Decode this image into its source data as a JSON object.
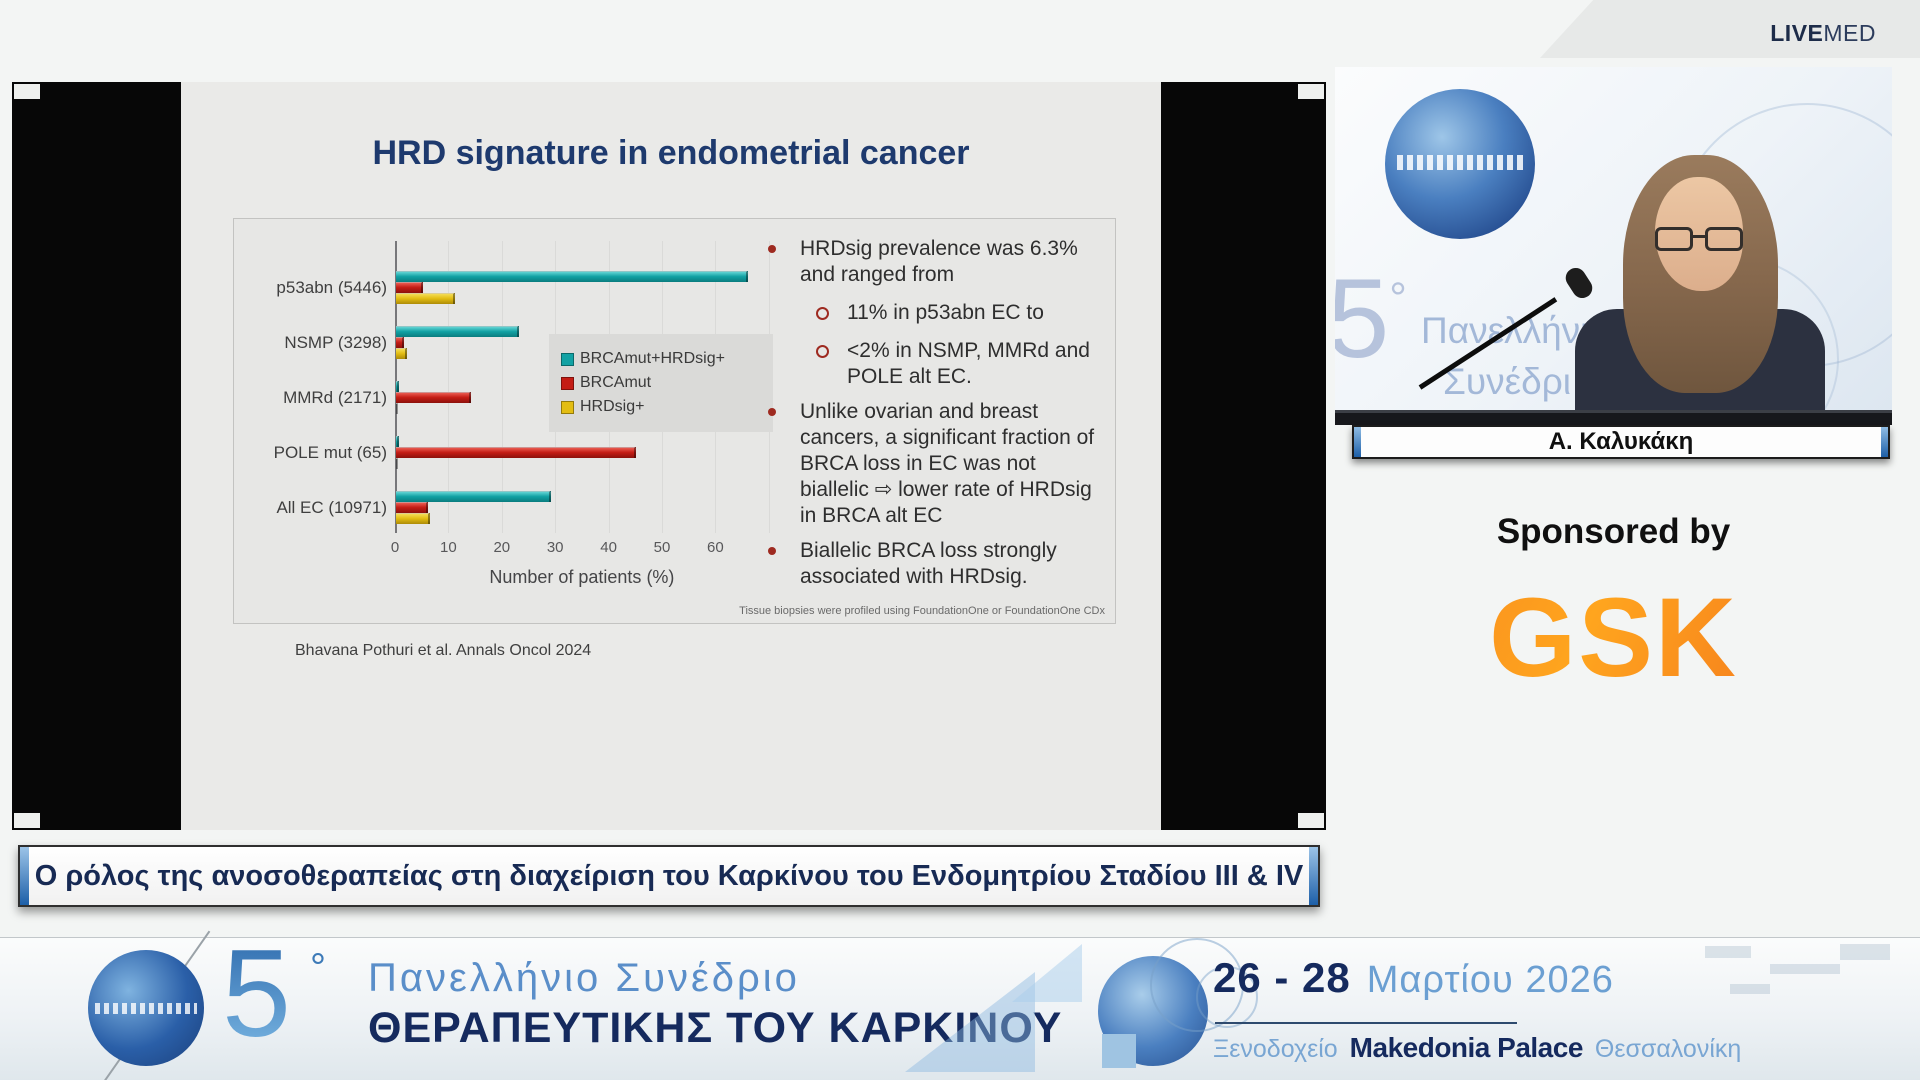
{
  "brand": {
    "live": "LIVE",
    "med": "MED"
  },
  "slide": {
    "title": "HRD signature in endometrial cancer",
    "bullets": [
      {
        "level": 1,
        "text": "HRDsig prevalence was 6.3% and ranged from"
      },
      {
        "level": 2,
        "text": "11% in p53abn EC to"
      },
      {
        "level": 2,
        "text": "<2% in NSMP, MMRd and POLE alt EC."
      },
      {
        "level": 1,
        "text": "Unlike ovarian and breast cancers, a significant fraction of BRCA loss in EC was not biallelic ⇨ lower rate of HRDsig in BRCA alt EC"
      },
      {
        "level": 1,
        "text": "Biallelic BRCA loss strongly associated with HRDsig."
      }
    ],
    "footnote": "Tissue biopsies were profiled using FoundationOne or FoundationOne CDx",
    "citation": "Bhavana Pothuri et al. Annals Oncol 2024"
  },
  "chart_data": {
    "type": "bar",
    "orientation": "horizontal",
    "categories": [
      "p53abn (5446)",
      "NSMP (3298)",
      "MMRd (2171)",
      "POLE mut (65)",
      "All EC (10971)"
    ],
    "series": [
      {
        "name": "BRCAmut+HRDsig+",
        "color": "#12a2a4",
        "light": "#62d3d3",
        "dark": "#0a7c7e",
        "values": [
          66,
          23,
          0.5,
          0.5,
          29
        ]
      },
      {
        "name": "BRCAmut",
        "color": "#c41d15",
        "light": "#ea5a50",
        "dark": "#8c110c",
        "values": [
          5,
          1.5,
          14,
          45,
          6
        ]
      },
      {
        "name": "HRDsig+",
        "color": "#e3bd12",
        "light": "#f3dc55",
        "dark": "#ad8c07",
        "values": [
          11,
          2,
          0.4,
          0.4,
          6.3
        ]
      }
    ],
    "xlabel": "Number of patients (%)",
    "xticks": [
      0,
      10,
      20,
      30,
      40,
      50,
      60
    ],
    "xlim": [
      0,
      70
    ],
    "grid": true,
    "legend_position": "center-right"
  },
  "video": {
    "speaker_name": "Α. Καλυκάκη",
    "backdrop": {
      "number": "5",
      "degree": "°",
      "line1": "Πανελλήνιο",
      "line2": "Συνέδρι"
    }
  },
  "sponsor": {
    "label": "Sponsored by",
    "name": "GSK",
    "orange": "#f58220"
  },
  "lecture_title": "Ο ρόλος της ανοσοθεραπείας στη διαχείριση του Καρκίνου του Ενδομητρίου Σταδίου III & IV",
  "banner": {
    "number": "5",
    "degree": "°",
    "line1": "Πανελλήνιο Συνέδριο",
    "line2": "ΘΕΡΑΠΕΥΤΙΚΗΣ ΤΟΥ ΚΑΡΚΙΝΟΥ",
    "dates": "26 - 28",
    "month_year": "Μαρτίου 2026",
    "venue_prefix": "Ξενοδοχείο",
    "venue": "Makedonia Palace",
    "city": "Θεσσαλονίκη"
  },
  "colors": {
    "accent_navy": "#152a5e",
    "accent_blue": "#5a8ec9",
    "bullet_red": "#9e2a20",
    "title_navy": "#1e3a6e"
  }
}
